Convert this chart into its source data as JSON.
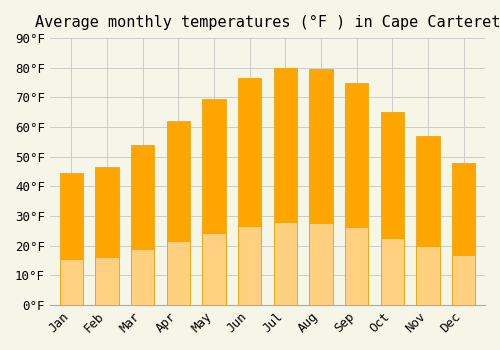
{
  "title": "Average monthly temperatures (°F ) in Cape Carteret",
  "months": [
    "Jan",
    "Feb",
    "Mar",
    "Apr",
    "May",
    "Jun",
    "Jul",
    "Aug",
    "Sep",
    "Oct",
    "Nov",
    "Dec"
  ],
  "values": [
    44.5,
    46.5,
    54,
    62,
    69.5,
    76.5,
    80,
    79.5,
    75,
    65,
    57,
    48
  ],
  "bar_color_top": "#FFA500",
  "bar_color_bottom": "#FFD080",
  "ylim": [
    0,
    90
  ],
  "yticks": [
    0,
    10,
    20,
    30,
    40,
    50,
    60,
    70,
    80,
    90
  ],
  "ytick_labels": [
    "0°F",
    "10°F",
    "20°F",
    "30°F",
    "40°F",
    "50°F",
    "60°F",
    "70°F",
    "80°F",
    "90°F"
  ],
  "background_color": "#F5F5E8",
  "grid_color": "#CCCCCC",
  "bar_edge_color": "#E8A000",
  "title_fontsize": 11,
  "tick_fontsize": 9
}
